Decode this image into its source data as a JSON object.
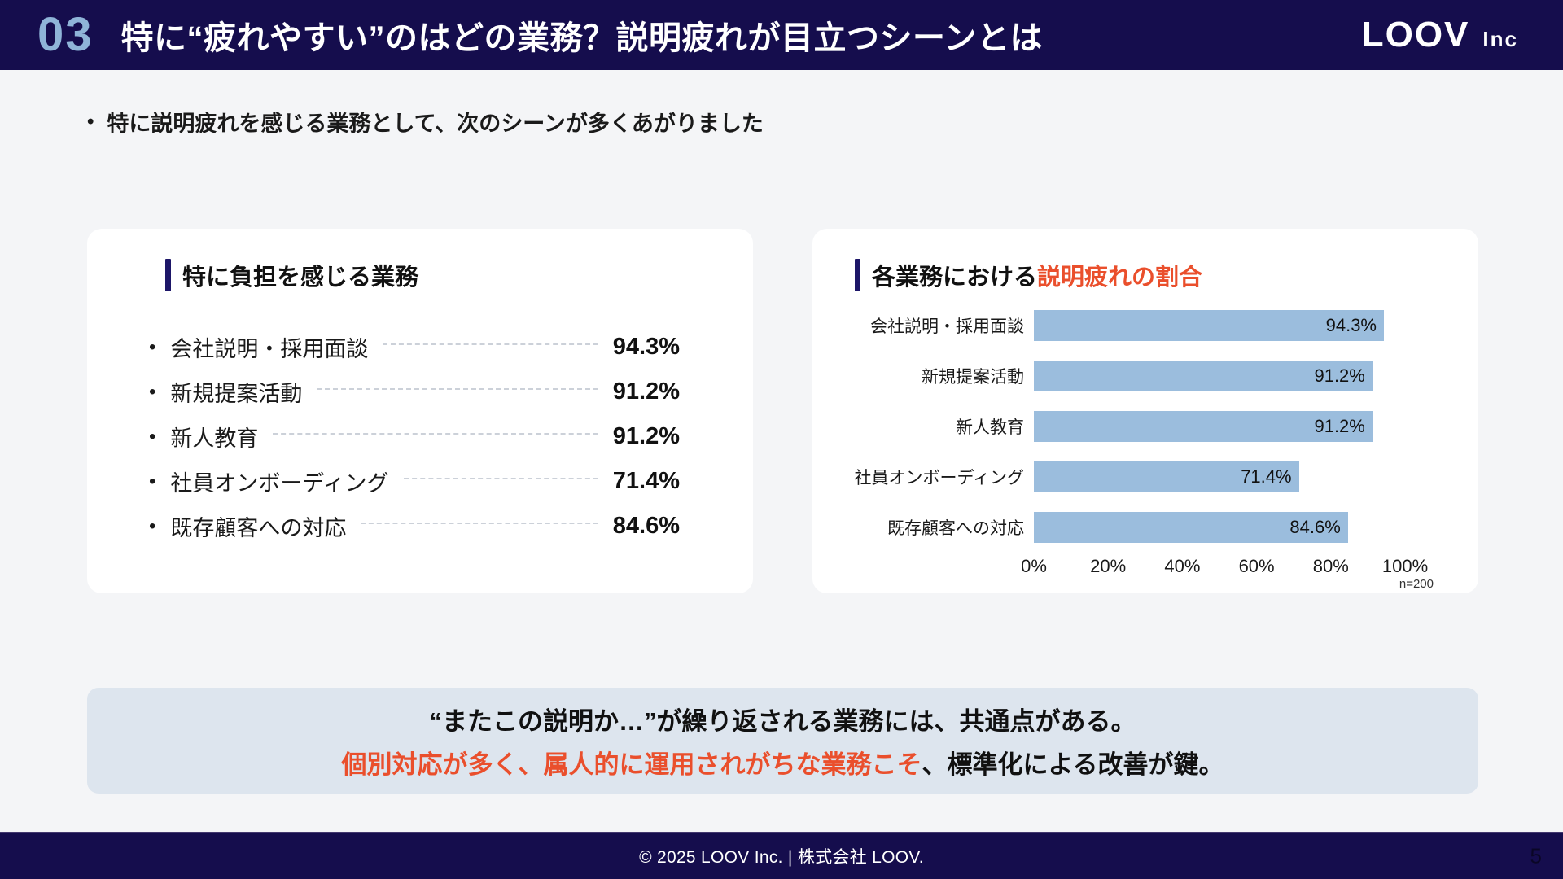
{
  "header": {
    "number": "03",
    "title": "特に“疲れやすい”のはどの業務？説明疲れが目立つシーンとは",
    "logo": {
      "main": "LOOV",
      "suffix": "Inc"
    }
  },
  "intro": {
    "bullet": "•",
    "text": "特に説明疲れを感じる業務として、次のシーンが多くあがりました"
  },
  "left_card": {
    "title": "特に負担を感じる業務",
    "items": [
      {
        "bullet": "•",
        "label": "会社説明・採用面談",
        "value": "94.3%"
      },
      {
        "bullet": "•",
        "label": "新規提案活動",
        "value": "91.2%"
      },
      {
        "bullet": "•",
        "label": "新人教育",
        "value": "91.2%"
      },
      {
        "bullet": "•",
        "label": "社員オンボーディング",
        "value": "71.4%"
      },
      {
        "bullet": "•",
        "label": "既存顧客への対応",
        "value": "84.6%"
      }
    ]
  },
  "right_card": {
    "title_black": "各業務における",
    "title_accent": "説明疲れの割合"
  },
  "chart_data": {
    "type": "bar",
    "orientation": "horizontal",
    "title": "各業務における説明疲れの割合",
    "categories": [
      "会社説明・採用面談",
      "新規提案活動",
      "新人教育",
      "社員オンボーディング",
      "既存顧客への対応"
    ],
    "values": [
      94.3,
      91.2,
      91.2,
      71.4,
      84.6
    ],
    "value_labels": [
      "94.3%",
      "91.2%",
      "91.2%",
      "71.4%",
      "84.6%"
    ],
    "x_ticks": [
      "0%",
      "20%",
      "40%",
      "60%",
      "80%",
      "100%"
    ],
    "xlim": [
      0,
      100
    ],
    "bar_color": "#9bbddd",
    "grid": false,
    "legend": false,
    "note": "n=200"
  },
  "summary": {
    "line1": "“またこの説明か…”が繰り返される業務には、共通点がある。",
    "line2_accent": "個別対応が多く、属人的に運用されがちな業務こそ",
    "line2_rest": "、標準化による改善が鍵。"
  },
  "footer": {
    "text": "© 2025 LOOV Inc. | 株式会社 LOOV.",
    "page": "5"
  },
  "colors": {
    "navy": "#150d4d",
    "header_number_blue": "#8fb4d8",
    "accent_orange": "#ea4f2c",
    "bar_blue": "#9bbddd",
    "summary_bg": "#dde5ee",
    "page_bg": "#f4f5f7"
  }
}
